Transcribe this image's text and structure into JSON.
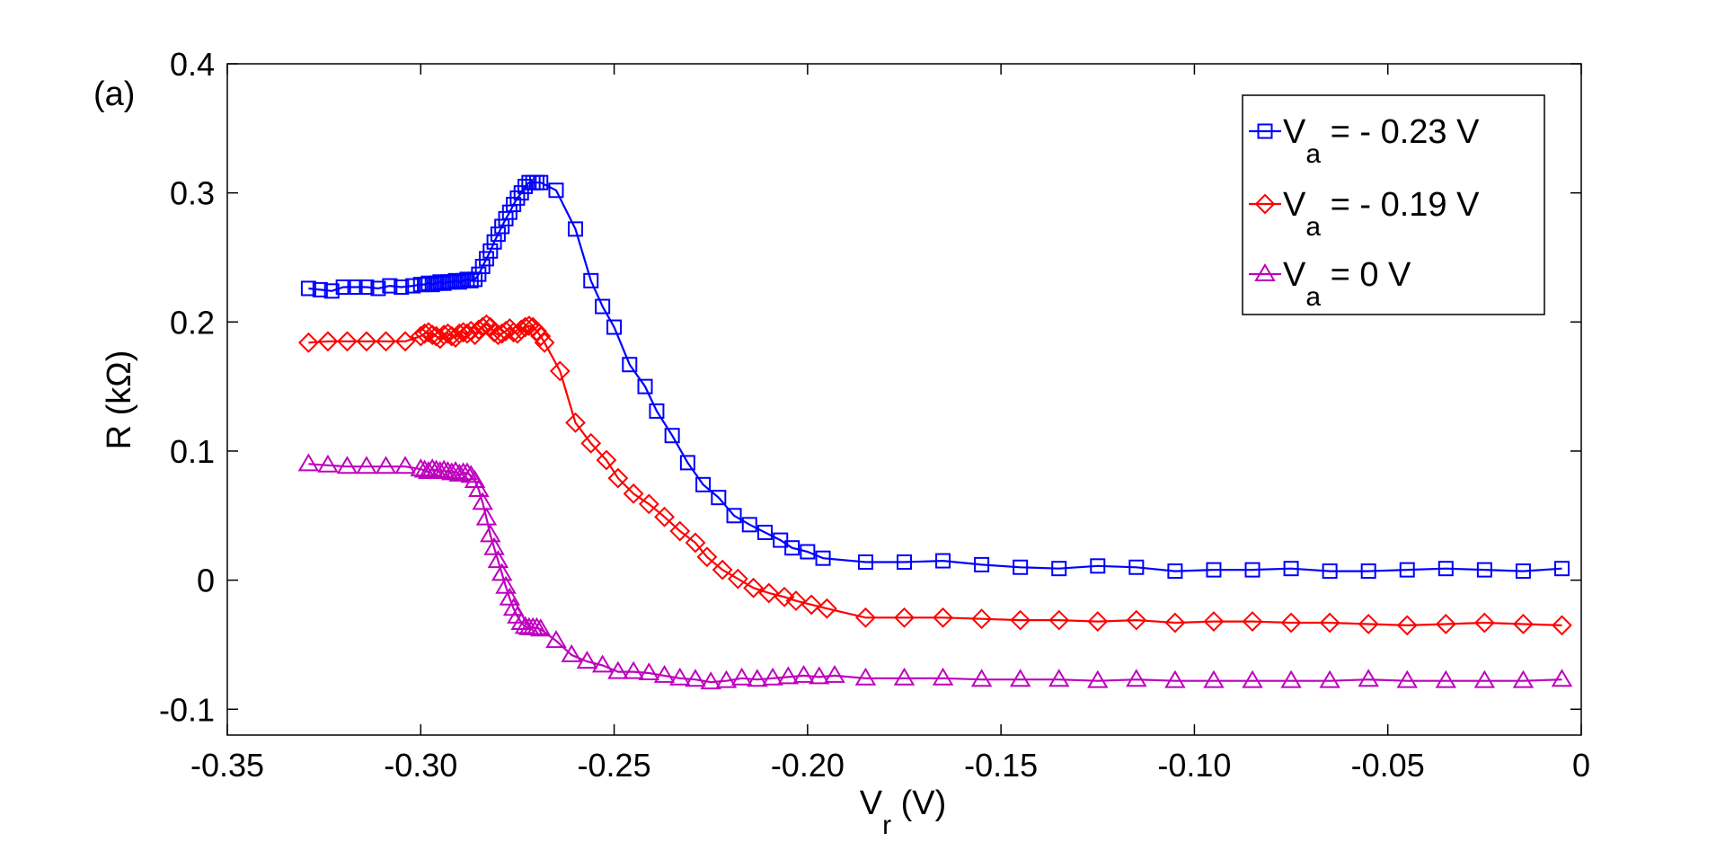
{
  "chart_data": {
    "type": "line",
    "panel_label": "(a)",
    "xlabel": {
      "main": "V",
      "sub": "r",
      "unit": " (V)"
    },
    "ylabel": "R (kΩ)",
    "xlim": [
      -0.35,
      0
    ],
    "ylim": [
      -0.12,
      0.4
    ],
    "xticks": [
      -0.35,
      -0.3,
      -0.25,
      -0.2,
      -0.15,
      -0.1,
      -0.05,
      0
    ],
    "xtick_labels": [
      "-0.35",
      "-0.30",
      "-0.25",
      "-0.20",
      "-0.15",
      "-0.10",
      "-0.05",
      "0"
    ],
    "yticks": [
      -0.1,
      0,
      0.1,
      0.2,
      0.3,
      0.4
    ],
    "ytick_labels": [
      "-0.1",
      "0",
      "0.1",
      "0.2",
      "0.3",
      "0.4"
    ],
    "grid": false,
    "legend_position": "top-right",
    "series": [
      {
        "name": "V_a = - 0.23 V",
        "legend_main": "V",
        "legend_sub": "a",
        "legend_rest": " = - 0.23 V",
        "color": "#0000ff",
        "marker": "square",
        "x": [
          -0.329,
          -0.326,
          -0.323,
          -0.32,
          -0.317,
          -0.314,
          -0.311,
          -0.308,
          -0.305,
          -0.302,
          -0.3,
          -0.299,
          -0.298,
          -0.297,
          -0.296,
          -0.295,
          -0.294,
          -0.293,
          -0.292,
          -0.291,
          -0.29,
          -0.289,
          -0.288,
          -0.287,
          -0.286,
          -0.285,
          -0.284,
          -0.283,
          -0.282,
          -0.281,
          -0.28,
          -0.279,
          -0.278,
          -0.277,
          -0.276,
          -0.275,
          -0.274,
          -0.273,
          -0.272,
          -0.271,
          -0.27,
          -0.269,
          -0.265,
          -0.26,
          -0.256,
          -0.253,
          -0.25,
          -0.246,
          -0.242,
          -0.239,
          -0.235,
          -0.231,
          -0.227,
          -0.223,
          -0.219,
          -0.215,
          -0.211,
          -0.207,
          -0.204,
          -0.2,
          -0.196,
          -0.185,
          -0.175,
          -0.165,
          -0.155,
          -0.145,
          -0.135,
          -0.125,
          -0.115,
          -0.105,
          -0.095,
          -0.085,
          -0.075,
          -0.065,
          -0.055,
          -0.045,
          -0.035,
          -0.025,
          -0.015,
          -0.005
        ],
        "y": [
          0.226,
          0.225,
          0.224,
          0.227,
          0.227,
          0.227,
          0.226,
          0.228,
          0.227,
          0.228,
          0.229,
          0.229,
          0.23,
          0.229,
          0.23,
          0.231,
          0.23,
          0.231,
          0.231,
          0.232,
          0.231,
          0.232,
          0.233,
          0.232,
          0.233,
          0.237,
          0.243,
          0.249,
          0.255,
          0.262,
          0.268,
          0.274,
          0.28,
          0.285,
          0.291,
          0.296,
          0.3,
          0.305,
          0.308,
          0.308,
          0.308,
          0.308,
          0.302,
          0.272,
          0.232,
          0.212,
          0.196,
          0.167,
          0.15,
          0.131,
          0.112,
          0.091,
          0.074,
          0.064,
          0.05,
          0.043,
          0.037,
          0.031,
          0.025,
          0.022,
          0.017,
          0.014,
          0.014,
          0.015,
          0.012,
          0.01,
          0.009,
          0.011,
          0.01,
          0.007,
          0.008,
          0.008,
          0.009,
          0.007,
          0.007,
          0.008,
          0.009,
          0.008,
          0.007,
          0.009
        ]
      },
      {
        "name": "V_a = - 0.19 V",
        "legend_main": "V",
        "legend_sub": "a",
        "legend_rest": " = - 0.19 V",
        "color": "#ff0000",
        "marker": "diamond",
        "x": [
          -0.329,
          -0.324,
          -0.319,
          -0.314,
          -0.309,
          -0.304,
          -0.3,
          -0.299,
          -0.298,
          -0.297,
          -0.296,
          -0.295,
          -0.294,
          -0.293,
          -0.292,
          -0.291,
          -0.29,
          -0.289,
          -0.288,
          -0.287,
          -0.286,
          -0.285,
          -0.284,
          -0.283,
          -0.282,
          -0.281,
          -0.28,
          -0.279,
          -0.278,
          -0.277,
          -0.276,
          -0.275,
          -0.274,
          -0.273,
          -0.272,
          -0.271,
          -0.27,
          -0.269,
          -0.268,
          -0.264,
          -0.26,
          -0.256,
          -0.252,
          -0.249,
          -0.245,
          -0.241,
          -0.237,
          -0.233,
          -0.229,
          -0.226,
          -0.222,
          -0.218,
          -0.214,
          -0.21,
          -0.206,
          -0.203,
          -0.199,
          -0.195,
          -0.185,
          -0.175,
          -0.165,
          -0.155,
          -0.145,
          -0.135,
          -0.125,
          -0.115,
          -0.105,
          -0.095,
          -0.085,
          -0.075,
          -0.065,
          -0.055,
          -0.045,
          -0.035,
          -0.025,
          -0.015,
          -0.005
        ],
        "y": [
          0.184,
          0.185,
          0.185,
          0.185,
          0.185,
          0.185,
          0.189,
          0.191,
          0.192,
          0.19,
          0.189,
          0.187,
          0.19,
          0.191,
          0.189,
          0.188,
          0.191,
          0.192,
          0.191,
          0.193,
          0.19,
          0.194,
          0.196,
          0.198,
          0.196,
          0.192,
          0.19,
          0.191,
          0.193,
          0.195,
          0.192,
          0.191,
          0.194,
          0.196,
          0.197,
          0.196,
          0.193,
          0.189,
          0.184,
          0.162,
          0.122,
          0.106,
          0.093,
          0.079,
          0.067,
          0.059,
          0.049,
          0.038,
          0.029,
          0.018,
          0.008,
          0.001,
          -0.006,
          -0.01,
          -0.013,
          -0.016,
          -0.019,
          -0.022,
          -0.029,
          -0.029,
          -0.029,
          -0.03,
          -0.031,
          -0.031,
          -0.032,
          -0.031,
          -0.033,
          -0.032,
          -0.032,
          -0.033,
          -0.033,
          -0.034,
          -0.035,
          -0.034,
          -0.033,
          -0.034,
          -0.035
        ]
      },
      {
        "name": "V_a = 0 V",
        "legend_main": "V",
        "legend_sub": "a",
        "legend_rest": " = 0 V",
        "color": "#bf00bf",
        "marker": "triangle",
        "x": [
          -0.329,
          -0.324,
          -0.319,
          -0.314,
          -0.309,
          -0.304,
          -0.3,
          -0.299,
          -0.298,
          -0.297,
          -0.296,
          -0.295,
          -0.294,
          -0.293,
          -0.292,
          -0.291,
          -0.29,
          -0.289,
          -0.288,
          -0.287,
          -0.286,
          -0.285,
          -0.284,
          -0.283,
          -0.282,
          -0.281,
          -0.28,
          -0.279,
          -0.278,
          -0.277,
          -0.276,
          -0.275,
          -0.274,
          -0.273,
          -0.272,
          -0.271,
          -0.27,
          -0.269,
          -0.265,
          -0.261,
          -0.257,
          -0.253,
          -0.249,
          -0.245,
          -0.241,
          -0.237,
          -0.233,
          -0.229,
          -0.225,
          -0.221,
          -0.217,
          -0.213,
          -0.209,
          -0.205,
          -0.201,
          -0.197,
          -0.193,
          -0.185,
          -0.175,
          -0.165,
          -0.155,
          -0.145,
          -0.135,
          -0.125,
          -0.115,
          -0.105,
          -0.095,
          -0.085,
          -0.075,
          -0.065,
          -0.055,
          -0.045,
          -0.035,
          -0.025,
          -0.015,
          -0.005
        ],
        "y": [
          0.09,
          0.089,
          0.088,
          0.088,
          0.088,
          0.088,
          0.086,
          0.085,
          0.084,
          0.086,
          0.085,
          0.084,
          0.085,
          0.084,
          0.083,
          0.084,
          0.082,
          0.083,
          0.083,
          0.081,
          0.077,
          0.07,
          0.06,
          0.048,
          0.035,
          0.025,
          0.015,
          0.005,
          -0.005,
          -0.014,
          -0.022,
          -0.028,
          -0.033,
          -0.036,
          -0.037,
          -0.037,
          -0.037,
          -0.038,
          -0.047,
          -0.058,
          -0.063,
          -0.066,
          -0.071,
          -0.071,
          -0.072,
          -0.074,
          -0.076,
          -0.077,
          -0.079,
          -0.078,
          -0.076,
          -0.077,
          -0.076,
          -0.075,
          -0.074,
          -0.075,
          -0.074,
          -0.076,
          -0.076,
          -0.076,
          -0.077,
          -0.077,
          -0.077,
          -0.078,
          -0.077,
          -0.078,
          -0.078,
          -0.078,
          -0.078,
          -0.078,
          -0.077,
          -0.078,
          -0.078,
          -0.078,
          -0.078,
          -0.077
        ]
      }
    ]
  }
}
